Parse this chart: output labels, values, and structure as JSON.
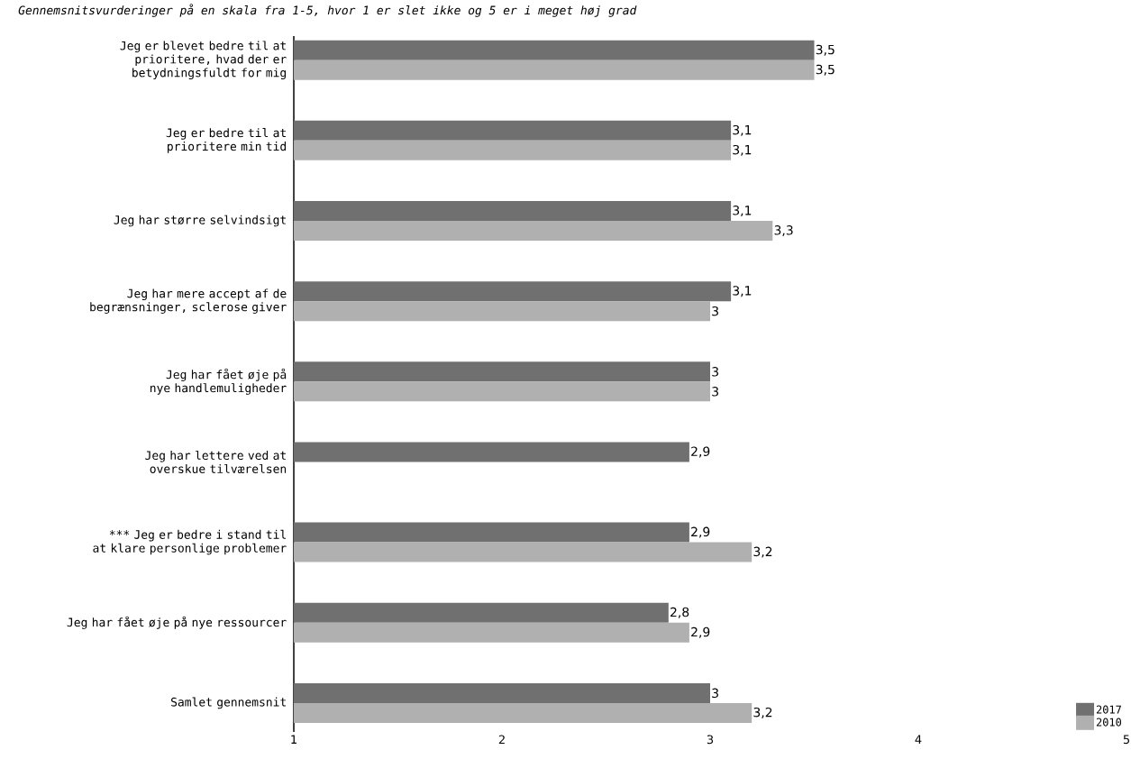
{
  "chart_data": {
    "type": "bar",
    "orientation": "horizontal",
    "title": "Gennemsnitsvurderinger på en skala fra 1-5, hvor 1 er slet ikke og 5 er i meget høj grad",
    "categories": [
      "Jeg er blevet bedre til at prioritere, hvad der er betydningsfuldt for mig",
      "Jeg er bedre til at prioritere min tid",
      "Jeg har større selvindsigt",
      "Jeg har mere accept af de begrænsninger, sclerose giver",
      "Jeg har fået øje på nye handlemuligheder",
      "Jeg har lettere ved at overskue tilværelsen",
      "*** Jeg er bedre i stand til at klare personlige problemer",
      "Jeg har fået øje på nye ressourcer",
      "Samlet gennemsnit"
    ],
    "series": [
      {
        "name": "2017",
        "color": "#707070",
        "values": [
          3.5,
          3.1,
          3.1,
          3.1,
          3,
          2.9,
          2.9,
          2.8,
          3
        ],
        "value_labels": [
          "3,5",
          "3,1",
          "3,1",
          "3,1",
          "3",
          "2,9",
          "2,9",
          "2,8",
          "3"
        ]
      },
      {
        "name": "2010",
        "color": "#b0b0b0",
        "values": [
          3.5,
          3.1,
          3.3,
          3,
          3,
          null,
          3.2,
          2.9,
          3.2
        ],
        "value_labels": [
          "3,5",
          "3,1",
          "3,3",
          "3",
          "3",
          null,
          "3,2",
          "2,9",
          "3,2"
        ]
      }
    ],
    "xlim": [
      1,
      5
    ],
    "xticks": [
      1,
      2,
      3,
      4,
      5
    ],
    "legend": "bottom right",
    "grid": false
  }
}
